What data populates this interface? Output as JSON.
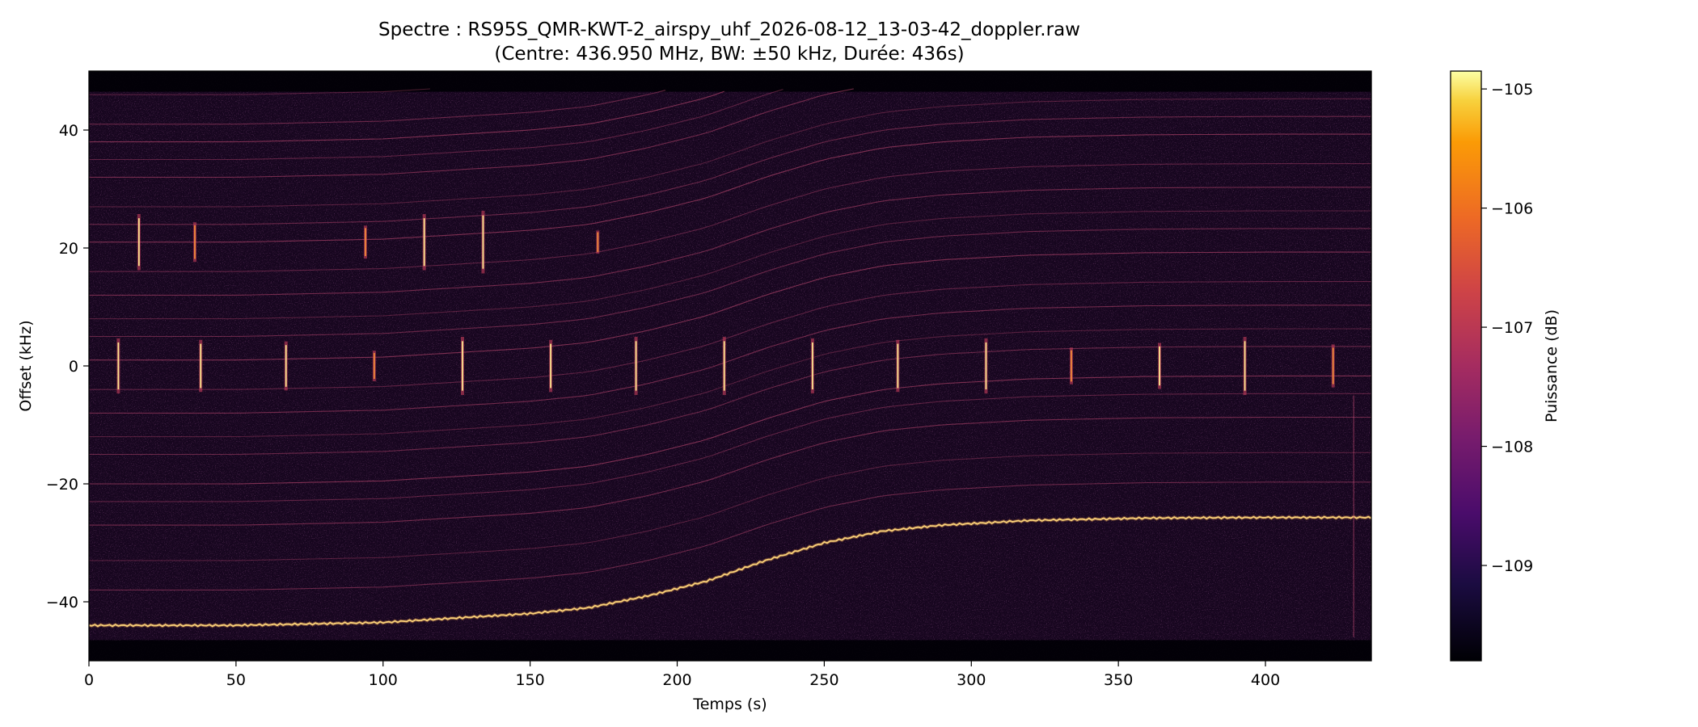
{
  "chart_data": {
    "type": "heatmap",
    "title_line1": "Spectre : RS95S_QMR-KWT-2_airspy_uhf_2026-08-12_13-03-42_doppler.raw",
    "title_line2": "(Centre: 436.950 MHz, BW: ±50 kHz, Durée: 436s)",
    "xlabel": "Temps (s)",
    "ylabel": "Offset (kHz)",
    "colorbar_label": "Puissance (dB)",
    "xlim": [
      0,
      436
    ],
    "ylim": [
      -50,
      50
    ],
    "x_ticks": [
      0,
      50,
      100,
      150,
      200,
      250,
      300,
      350,
      400
    ],
    "x_tick_labels": [
      "0",
      "50",
      "100",
      "150",
      "200",
      "250",
      "300",
      "350",
      "400"
    ],
    "y_ticks": [
      -40,
      -20,
      0,
      20,
      40
    ],
    "y_tick_labels": [
      "−40",
      "−20",
      "0",
      "20",
      "40"
    ],
    "colorbar_range": [
      -109.8,
      -104.85
    ],
    "colorbar_ticks": [
      -109,
      -108,
      -107,
      -106,
      -105
    ],
    "colorbar_tick_labels": [
      "−109",
      "−108",
      "−107",
      "−106",
      "−105"
    ],
    "colormap": "inferno",
    "grid": false,
    "main_signal": {
      "t": [
        0,
        50,
        100,
        150,
        170,
        190,
        210,
        230,
        250,
        270,
        290,
        320,
        360,
        400,
        436
      ],
      "offset_khz": [
        -44,
        -44,
        -43.5,
        -42,
        -41,
        -39,
        -36.5,
        -33,
        -30,
        -28,
        -27,
        -26.2,
        -25.8,
        -25.7,
        -25.7
      ]
    },
    "faint_lines_start_offsets_khz": [
      46,
      41,
      38,
      35,
      32,
      27,
      24,
      21,
      16,
      12,
      8,
      5,
      1,
      -4,
      -8,
      -12,
      -15,
      -20,
      -23,
      -27,
      -33,
      -38
    ],
    "pulses_center": {
      "offset_khz": 0,
      "t": [
        10,
        38,
        67,
        97,
        127,
        157,
        186,
        216,
        246,
        275,
        305,
        334,
        364,
        393,
        423
      ],
      "amplitude": [
        0.9,
        0.85,
        0.8,
        0.5,
        0.95,
        0.85,
        0.95,
        0.95,
        0.9,
        0.85,
        0.9,
        0.6,
        0.75,
        0.95,
        0.7
      ]
    },
    "pulses_upper": {
      "offset_khz": 21,
      "t": [
        17,
        36,
        94,
        114,
        134,
        173
      ],
      "amplitude": [
        0.85,
        0.6,
        0.5,
        0.85,
        0.95,
        0.35
      ]
    }
  }
}
